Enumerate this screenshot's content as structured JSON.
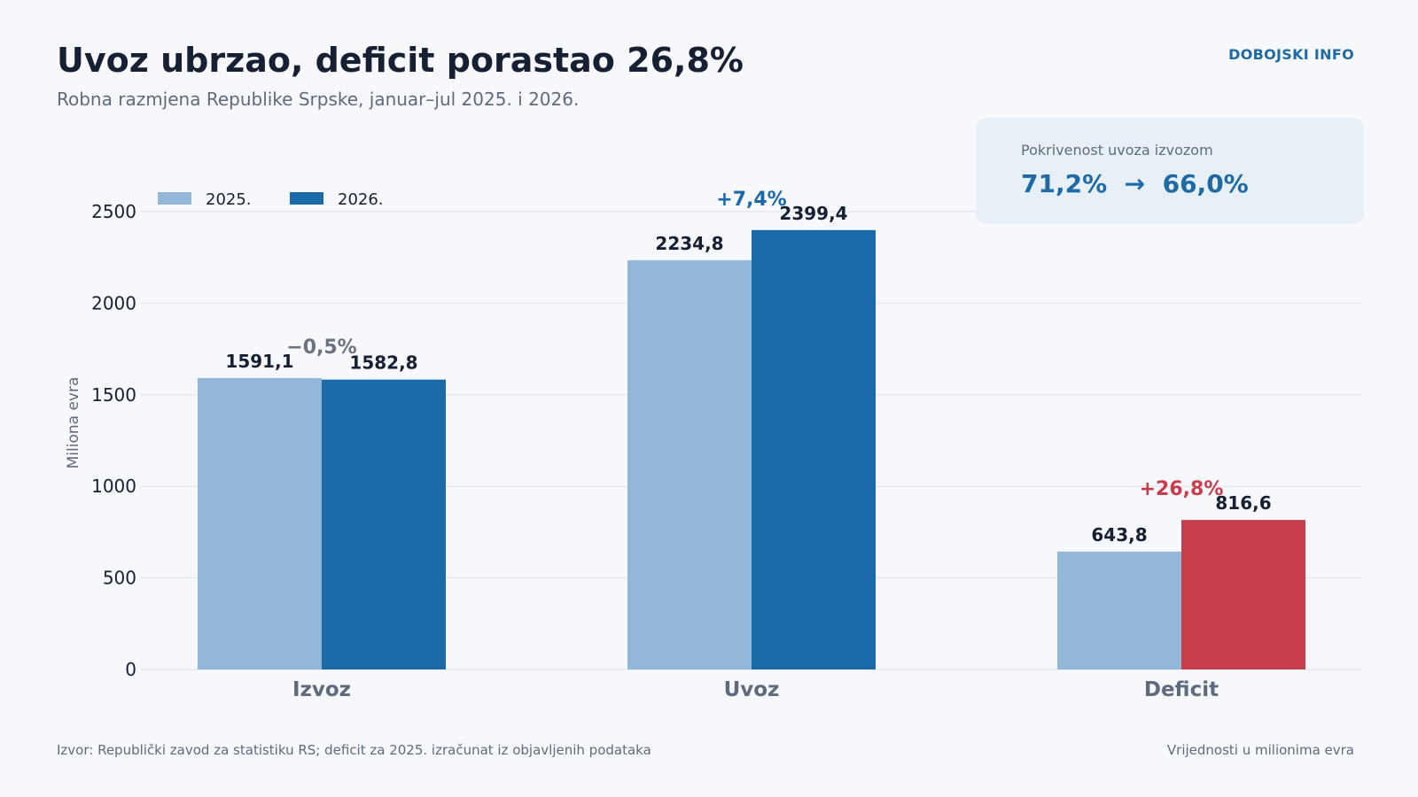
{
  "header": {
    "title": "Uvoz ubrzao, deficit porastao 26,8%",
    "subtitle": "Robna razmjena Republike Srpske, januar–jul 2025. i 2026.",
    "brand": "DOBOJSKI INFO"
  },
  "callout": {
    "label": "Pokrivenost uvoza izvozom",
    "value": "71,2%  →  66,0%"
  },
  "footer": {
    "source": "Izvor: Republički zavod za statistiku RS; deficit za 2025. izračunat iz objavljenih podataka",
    "units_note": "Vrijednosti u milionima evra"
  },
  "colors": {
    "series_2025": "#93b7d9",
    "series_2026": "#1a6aa8",
    "deficit_2026": "#c83d4b",
    "change_negative": "#6b7280",
    "change_positive": "#1a6aa8",
    "change_deficit": "#c83d4b",
    "grid": "#dde2ea"
  },
  "chart_data": {
    "type": "bar",
    "categories": [
      "Izvoz",
      "Uvoz",
      "Deficit"
    ],
    "series": [
      {
        "name": "2025.",
        "values": [
          1591.1,
          2234.8,
          643.8
        ],
        "labels": [
          "1591,1",
          "2234,8",
          "643,8"
        ]
      },
      {
        "name": "2026.",
        "values": [
          1582.8,
          2399.4,
          816.6
        ],
        "labels": [
          "1582,8",
          "2399,4",
          "816,6"
        ]
      }
    ],
    "changes": [
      "−0,5%",
      "+7,4%",
      "+26,8%"
    ],
    "ylabel": "Miliona evra",
    "xlabel": "",
    "ylim": [
      0,
      2500
    ],
    "yticks": [
      0,
      500,
      1000,
      1500,
      2000,
      2500
    ],
    "grid": true,
    "legend_position": "top-left"
  }
}
